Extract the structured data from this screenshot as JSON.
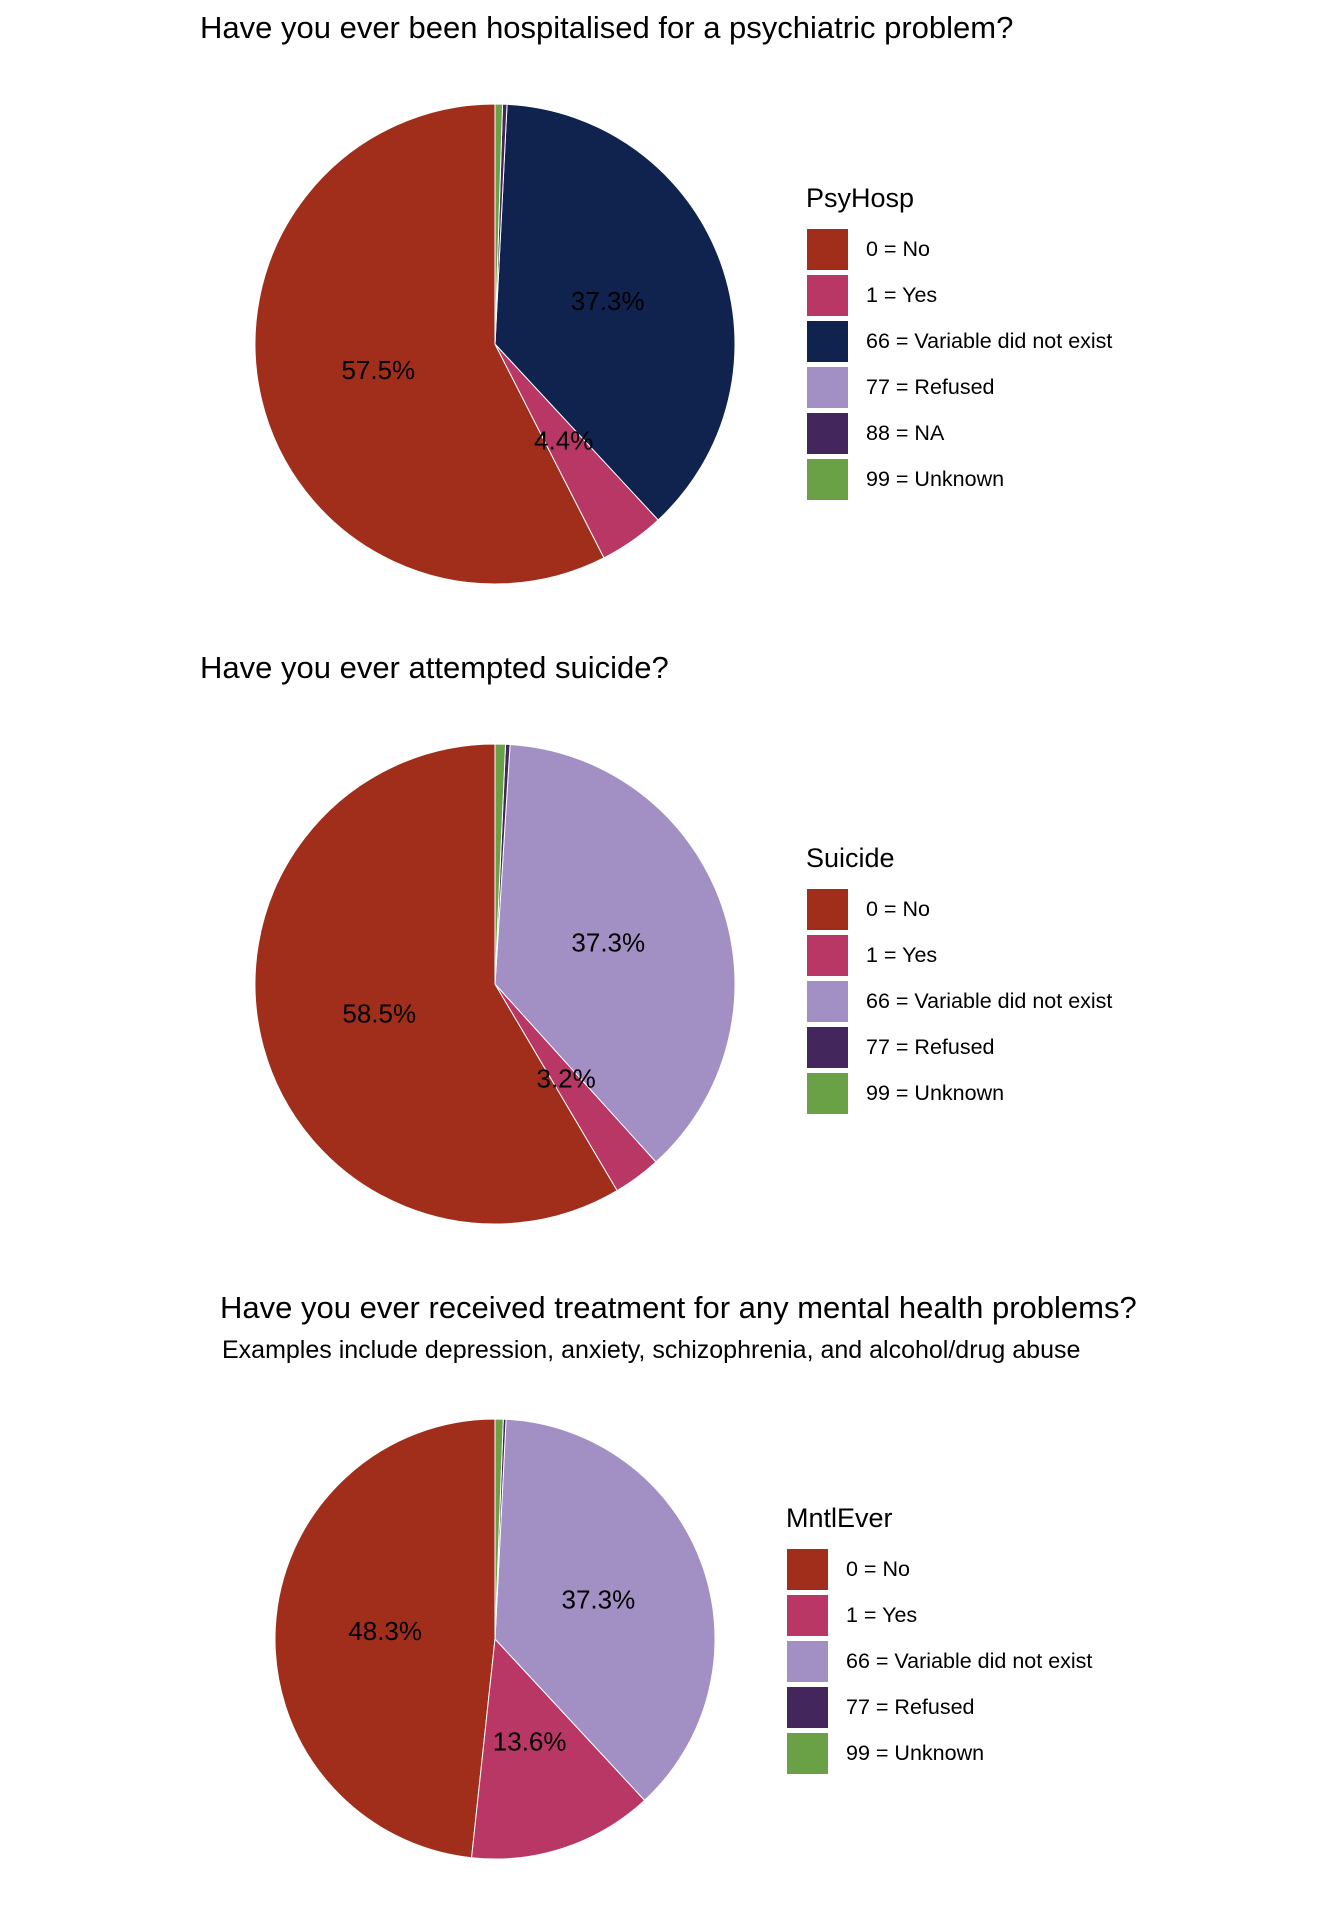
{
  "chart_data": [
    {
      "type": "pie",
      "title": "Have you ever been hospitalised for a psychiatric problem?",
      "subtitle": "",
      "legend_title": "PsyHosp",
      "legend_position": "right",
      "categories": [
        "0 = No",
        "1 = Yes",
        "66 = Variable did not exist",
        "77 = Refused",
        "88 = NA",
        "99 = Unknown"
      ],
      "colors": [
        "#A02E1B",
        "#B83765",
        "#10224E",
        "#A28FC3",
        "#43265C",
        "#6AA046"
      ],
      "values": [
        57.5,
        4.4,
        37.3,
        0.0,
        0.3,
        0.5
      ],
      "labels": [
        "57.5%",
        "4.4%",
        "37.3%",
        "",
        "",
        ""
      ]
    },
    {
      "type": "pie",
      "title": "Have you ever attempted suicide?",
      "subtitle": "",
      "legend_title": "Suicide",
      "legend_position": "right",
      "categories": [
        "0 = No",
        "1 = Yes",
        "66 = Variable did not exist",
        "77 = Refused",
        "99 = Unknown"
      ],
      "colors": [
        "#A02E1B",
        "#B83765",
        "#A28FC3",
        "#43265C",
        "#6AA046"
      ],
      "values": [
        58.5,
        3.2,
        37.3,
        0.3,
        0.7
      ],
      "labels": [
        "58.5%",
        "3.2%",
        "37.3%",
        "",
        ""
      ]
    },
    {
      "type": "pie",
      "title": "Have you ever received treatment for any mental health problems?",
      "subtitle": "Examples include depression, anxiety, schizophrenia, and alcohol/drug abuse",
      "legend_title": "MntlEver",
      "legend_position": "right",
      "categories": [
        "0 = No",
        "1 = Yes",
        "66 = Variable did not exist",
        "77 = Refused",
        "99 = Unknown"
      ],
      "colors": [
        "#A02E1B",
        "#B83765",
        "#A28FC3",
        "#43265C",
        "#6AA046"
      ],
      "values": [
        48.3,
        13.6,
        37.3,
        0.2,
        0.6
      ],
      "labels": [
        "48.3%",
        "13.6%",
        "37.3%",
        "",
        ""
      ]
    }
  ]
}
